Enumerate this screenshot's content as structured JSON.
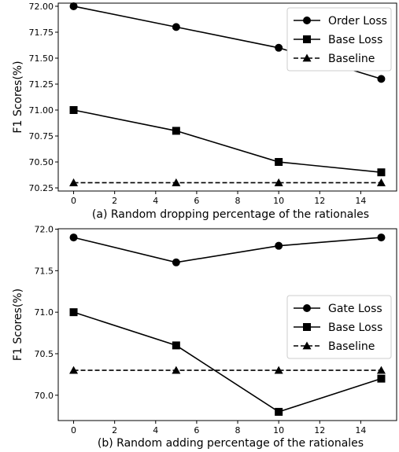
{
  "chart_data": [
    {
      "type": "line",
      "caption": "(a) Random dropping percentage of the rationales",
      "ylabel": "F1 Scores(%)",
      "xlabel": "",
      "x": [
        0,
        5,
        10,
        15
      ],
      "xlim": [
        -0.75,
        15.75
      ],
      "ylim": [
        70.22,
        72.03
      ],
      "xticks": [
        0,
        2,
        4,
        6,
        8,
        10,
        12,
        14
      ],
      "xtick_labels": [
        "0",
        "2",
        "4",
        "6",
        "8",
        "10",
        "12",
        "14"
      ],
      "yticks": [
        70.25,
        70.5,
        70.75,
        71.0,
        71.25,
        71.5,
        71.75,
        72.0
      ],
      "ytick_labels": [
        "70.25",
        "70.50",
        "70.75",
        "71.00",
        "71.25",
        "71.50",
        "71.75",
        "72.00"
      ],
      "grid": false,
      "legend_position": "top-right",
      "series": [
        {
          "name": "Order Loss",
          "values": [
            72.0,
            71.8,
            71.6,
            71.3
          ],
          "marker": "circle",
          "dash": "solid",
          "color": "#000000"
        },
        {
          "name": "Base Loss",
          "values": [
            71.0,
            70.8,
            70.5,
            70.4
          ],
          "marker": "square",
          "dash": "solid",
          "color": "#000000"
        },
        {
          "name": "Baseline",
          "values": [
            70.3,
            70.3,
            70.3,
            70.3
          ],
          "marker": "triangle",
          "dash": "dashed",
          "color": "#000000"
        }
      ]
    },
    {
      "type": "line",
      "caption": "(b) Random adding percentage of the rationales",
      "ylabel": "F1 Scores(%)",
      "xlabel": "",
      "x": [
        0,
        5,
        10,
        15
      ],
      "xlim": [
        -0.75,
        15.75
      ],
      "ylim": [
        69.695,
        72.005
      ],
      "xticks": [
        0,
        2,
        4,
        6,
        8,
        10,
        12,
        14
      ],
      "xtick_labels": [
        "0",
        "2",
        "4",
        "6",
        "8",
        "10",
        "12",
        "14"
      ],
      "yticks": [
        70.0,
        70.5,
        71.0,
        71.5,
        72.0
      ],
      "ytick_labels": [
        "70.0",
        "70.5",
        "71.0",
        "71.5",
        "72.0"
      ],
      "grid": false,
      "legend_position": "center-right",
      "series": [
        {
          "name": "Gate Loss",
          "values": [
            71.9,
            71.6,
            71.8,
            71.9
          ],
          "marker": "circle",
          "dash": "solid",
          "color": "#000000"
        },
        {
          "name": "Base Loss",
          "values": [
            71.0,
            70.6,
            69.8,
            70.2
          ],
          "marker": "square",
          "dash": "solid",
          "color": "#000000"
        },
        {
          "name": "Baseline",
          "values": [
            70.3,
            70.3,
            70.3,
            70.3
          ],
          "marker": "triangle",
          "dash": "dashed",
          "color": "#000000"
        }
      ]
    }
  ]
}
